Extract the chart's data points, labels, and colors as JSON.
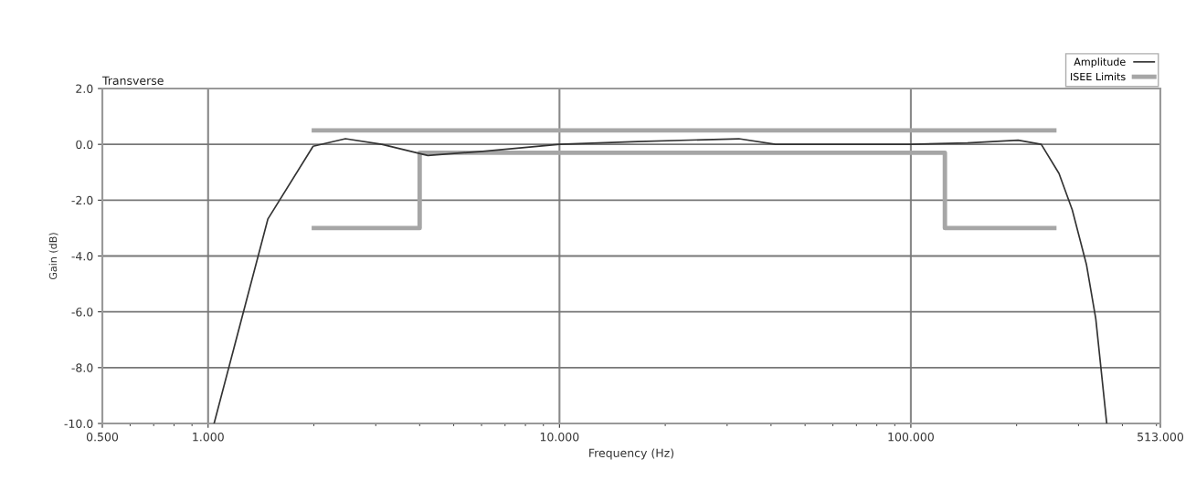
{
  "chart_data": {
    "type": "line",
    "title": "Transverse",
    "xlabel": "Frequency (Hz)",
    "ylabel": "Gain (dB)",
    "log": "x",
    "grid": true,
    "legend": "top right",
    "marker": "none",
    "xlim": [
      0.5,
      513
    ],
    "xticks": [
      {
        "value": 0.5,
        "label": "0.500"
      },
      {
        "value": 1,
        "label": "1.000"
      },
      {
        "value": 10,
        "label": "10.000"
      },
      {
        "value": 100,
        "label": "100.000"
      },
      {
        "value": 513,
        "label": "513.000"
      }
    ],
    "ylim": [
      -10,
      2
    ],
    "yticks": [
      {
        "value": -10,
        "label": "-10.0"
      },
      {
        "value": -8,
        "label": "-8.0"
      },
      {
        "value": -6,
        "label": "-6.0"
      },
      {
        "value": -4,
        "label": "-4.0"
      },
      {
        "value": -2,
        "label": "-2.0"
      },
      {
        "value": 0,
        "label": "0.0"
      },
      {
        "value": 2,
        "label": "2.0"
      }
    ],
    "series": [
      {
        "name": "Amplitude",
        "color": "#333333",
        "x": [
          1.04,
          1.48,
          1.99,
          2.46,
          3.12,
          4.22,
          6.04,
          10,
          16.7,
          32.4,
          41.2,
          100,
          145,
          202,
          235,
          264,
          288,
          316,
          336,
          361
        ],
        "values": [
          -10,
          -2.67,
          -0.07,
          0.2,
          0,
          -0.4,
          -0.25,
          0,
          0.1,
          0.2,
          0,
          0,
          0.05,
          0.15,
          0,
          -1.04,
          -2.35,
          -4.3,
          -6.25,
          -10
        ]
      },
      {
        "name": "ISEE Limits",
        "color": "#a6a6a6",
        "x": [
          2,
          256,
          null,
          2,
          4,
          4,
          125,
          125,
          256
        ],
        "values": [
          0.5,
          0.5,
          null,
          -3,
          -3,
          -0.3,
          -0.3,
          -3,
          -3
        ]
      }
    ]
  }
}
